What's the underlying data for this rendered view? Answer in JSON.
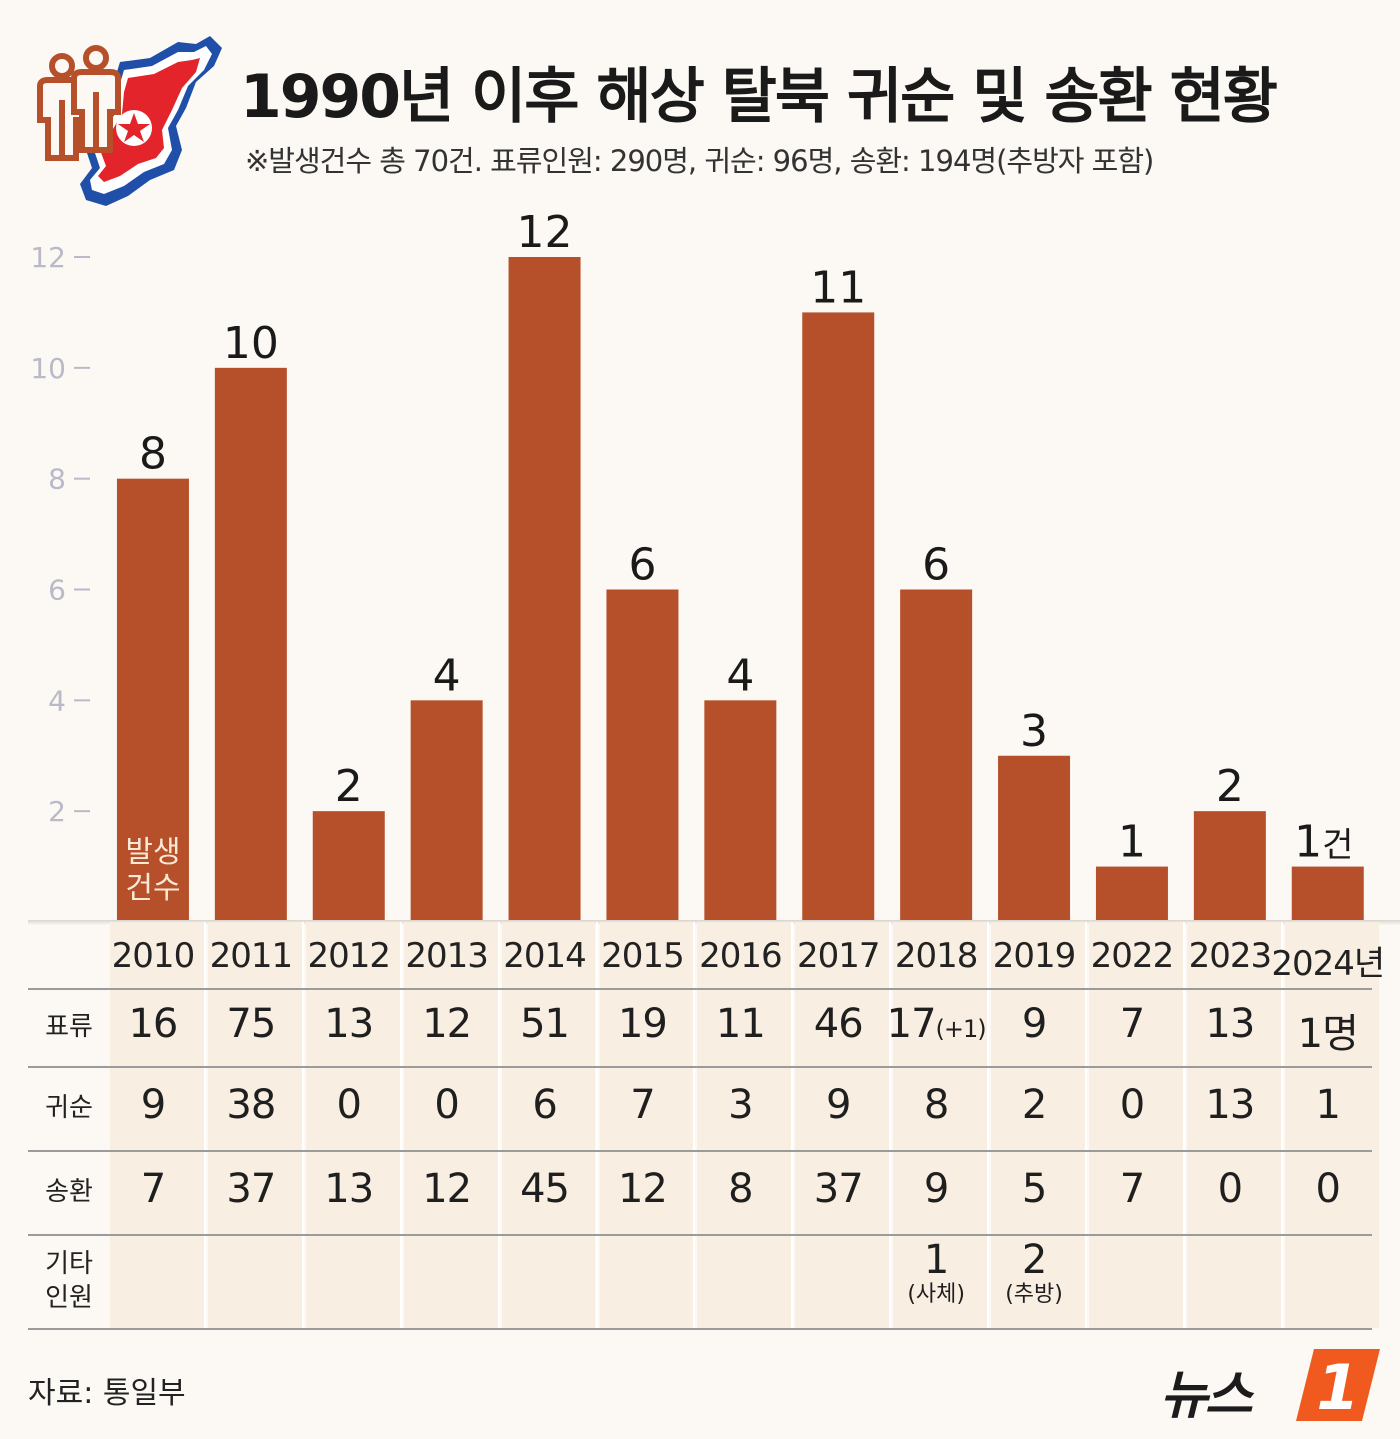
{
  "header": {
    "title": "1990년 이후 해상 탈북 귀순 및 송환 현황",
    "subtitle": "※발생건수 총 70건. 표류인원: 290명, 귀순: 96명, 송환: 194명(추방자 포함)",
    "icon_names": [
      "people-icon",
      "north-korea-map-icon",
      "north-korea-star-icon"
    ]
  },
  "chart_data": {
    "type": "bar",
    "categories": [
      "2010",
      "2011",
      "2012",
      "2013",
      "2014",
      "2015",
      "2016",
      "2017",
      "2018",
      "2019",
      "2022",
      "2023",
      "2024년"
    ],
    "values": [
      8,
      10,
      2,
      4,
      12,
      6,
      4,
      11,
      6,
      3,
      1,
      2,
      1
    ],
    "data_labels": [
      "8",
      "10",
      "2",
      "4",
      "12",
      "6",
      "4",
      "11",
      "6",
      "3",
      "1",
      "2",
      "1"
    ],
    "last_label_suffix": "건",
    "in_bar_label": "발생\n건수",
    "yticks": [
      2,
      4,
      6,
      8,
      10,
      12
    ],
    "ylim": [
      0,
      12
    ],
    "grid": false,
    "bar_color": "#b5502a"
  },
  "table": {
    "rows": [
      {
        "label": "표류",
        "values": [
          "16",
          "75",
          "13",
          "12",
          "51",
          "19",
          "11",
          "46",
          "17",
          "9",
          "7",
          "13",
          "1명"
        ],
        "notes": [
          "",
          "",
          "",
          "",
          "",
          "",
          "",
          "",
          "(+1)",
          "",
          "",
          "",
          ""
        ]
      },
      {
        "label": "귀순",
        "values": [
          "9",
          "38",
          "0",
          "0",
          "6",
          "7",
          "3",
          "9",
          "8",
          "2",
          "0",
          "13",
          "1"
        ]
      },
      {
        "label": "송환",
        "values": [
          "7",
          "37",
          "13",
          "12",
          "45",
          "12",
          "8",
          "37",
          "9",
          "5",
          "7",
          "0",
          "0"
        ]
      },
      {
        "label": "기타\n인원",
        "values": [
          "",
          "",
          "",
          "",
          "",
          "",
          "",
          "",
          "1",
          "2",
          "",
          "",
          ""
        ],
        "notes": [
          "",
          "",
          "",
          "",
          "",
          "",
          "",
          "",
          "(사체)",
          "(추방)",
          "",
          "",
          ""
        ]
      }
    ]
  },
  "footer": {
    "source": "자료: 통일부",
    "logo_text": "뉴스",
    "logo_badge": "1"
  },
  "colors": {
    "background": "#fcf9f4",
    "bar": "#b5502a",
    "shade": "#f8eee2",
    "axis_tick": "#b9b9c8",
    "logo_orange": "#f05a1e"
  }
}
